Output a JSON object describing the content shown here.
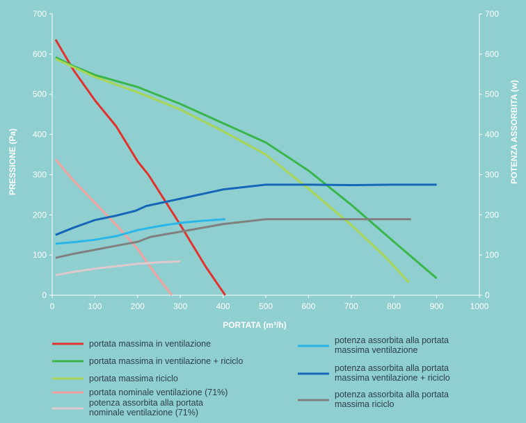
{
  "chart_data": {
    "type": "line",
    "title": "",
    "xlabel": "PORTATA (m³/h)",
    "ylabel": "PRESSIONE (Pa)",
    "y2label": "POTENZA ASSORBITA (w)",
    "xlim": [
      0,
      1000
    ],
    "ylim": [
      0,
      700
    ],
    "y2lim": [
      0,
      700
    ],
    "x_ticks": [
      "0",
      "100",
      "200",
      "300",
      "400",
      "500",
      "600",
      "700",
      "800",
      "900",
      "1000"
    ],
    "y_ticks": [
      "0",
      "100",
      "200",
      "300",
      "400",
      "500",
      "600",
      "700"
    ],
    "y2_ticks": [
      "0",
      "100",
      "200",
      "300",
      "400",
      "500",
      "600",
      "700"
    ],
    "grid": false,
    "legend_position": "bottom",
    "series": [
      {
        "name": "portata massima in ventilazione",
        "color": "#e3312d",
        "axis": "left",
        "points": [
          [
            8,
            636
          ],
          [
            50,
            560
          ],
          [
            100,
            485
          ],
          [
            150,
            420
          ],
          [
            200,
            333
          ],
          [
            225,
            300
          ],
          [
            300,
            175
          ],
          [
            360,
            70
          ],
          [
            405,
            0
          ]
        ]
      },
      {
        "name": "portata massima in ventilazione + riciclo",
        "color": "#3ab54a",
        "axis": "left",
        "points": [
          [
            8,
            592
          ],
          [
            50,
            570
          ],
          [
            100,
            548
          ],
          [
            200,
            518
          ],
          [
            300,
            476
          ],
          [
            400,
            428
          ],
          [
            500,
            380
          ],
          [
            600,
            310
          ],
          [
            700,
            225
          ],
          [
            800,
            133
          ],
          [
            900,
            42
          ]
        ]
      },
      {
        "name": "portata massima riciclo",
        "color": "#a8d553",
        "axis": "left",
        "points": [
          [
            8,
            588
          ],
          [
            100,
            543
          ],
          [
            200,
            505
          ],
          [
            300,
            462
          ],
          [
            400,
            408
          ],
          [
            500,
            350
          ],
          [
            600,
            265
          ],
          [
            700,
            175
          ],
          [
            780,
            95
          ],
          [
            835,
            32
          ]
        ]
      },
      {
        "name": "portata nominale ventilazione (71%)",
        "color": "#f4a09e",
        "axis": "left",
        "points": [
          [
            8,
            338
          ],
          [
            50,
            285
          ],
          [
            100,
            230
          ],
          [
            150,
            175
          ],
          [
            200,
            115
          ],
          [
            240,
            55
          ],
          [
            280,
            0
          ]
        ]
      },
      {
        "name": "potenza assorbita alla portata nominale ventilazione (71%)",
        "color": "#dfc9cc",
        "axis": "right",
        "points": [
          [
            8,
            50
          ],
          [
            50,
            58
          ],
          [
            100,
            66
          ],
          [
            150,
            72
          ],
          [
            200,
            78
          ],
          [
            250,
            82
          ],
          [
            300,
            84
          ]
        ]
      },
      {
        "name": "potenza assorbita alla portata massima ventilazione",
        "color": "#29b6ea",
        "axis": "right",
        "points": [
          [
            8,
            128
          ],
          [
            50,
            132
          ],
          [
            100,
            138
          ],
          [
            150,
            147
          ],
          [
            200,
            162
          ],
          [
            250,
            172
          ],
          [
            300,
            180
          ],
          [
            350,
            185
          ],
          [
            405,
            189
          ]
        ]
      },
      {
        "name": "potenza assorbita alla portata massima ventilazione + riciclo",
        "color": "#1565b8",
        "axis": "right",
        "points": [
          [
            8,
            150
          ],
          [
            50,
            168
          ],
          [
            100,
            187
          ],
          [
            150,
            198
          ],
          [
            195,
            210
          ],
          [
            220,
            222
          ],
          [
            300,
            240
          ],
          [
            400,
            263
          ],
          [
            500,
            275
          ],
          [
            600,
            275
          ],
          [
            700,
            274
          ],
          [
            800,
            275
          ],
          [
            900,
            275
          ]
        ]
      },
      {
        "name": "potenza assorbita alla portata massima riciclo",
        "color": "#808080",
        "axis": "right",
        "points": [
          [
            8,
            93
          ],
          [
            50,
            103
          ],
          [
            100,
            113
          ],
          [
            150,
            123
          ],
          [
            200,
            133
          ],
          [
            230,
            145
          ],
          [
            300,
            158
          ],
          [
            400,
            177
          ],
          [
            500,
            189
          ],
          [
            600,
            189
          ],
          [
            700,
            189
          ],
          [
            840,
            189
          ]
        ]
      }
    ]
  }
}
